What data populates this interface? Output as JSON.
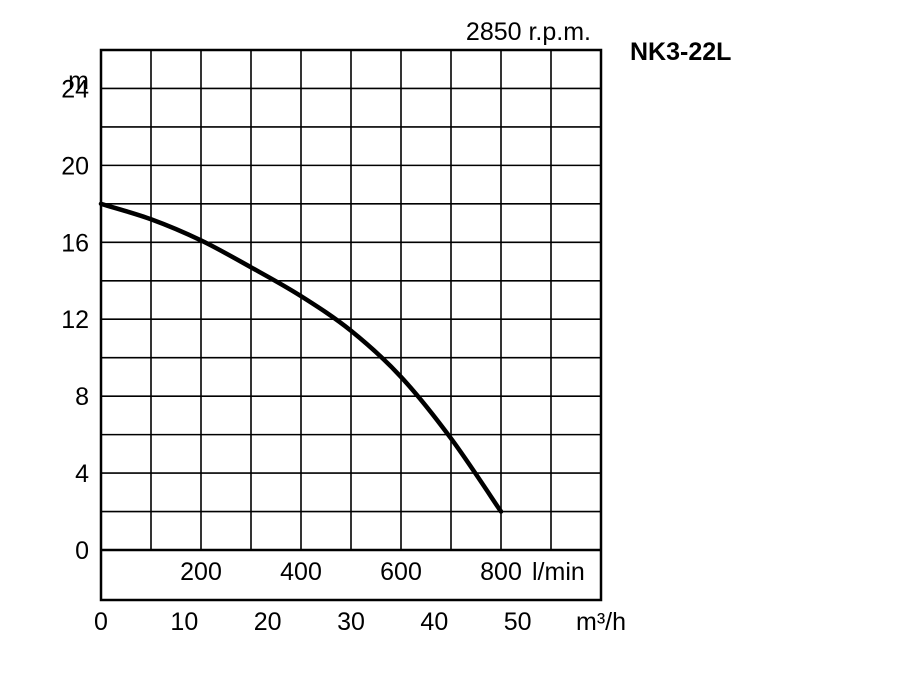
{
  "chart_data": {
    "type": "line",
    "title": "NK3-22L",
    "subtitle": "2850 r.p.m.",
    "ylabel": "m",
    "xlabel_lmin": "l/min",
    "xlabel_m3h": "m³/h",
    "ylim": [
      0,
      26
    ],
    "xlim_lmin": [
      0,
      1000
    ],
    "xlim_m3h": [
      0,
      60
    ],
    "yticks": [
      0,
      4,
      8,
      12,
      16,
      20,
      24
    ],
    "xticks_lmin": [
      200,
      400,
      600,
      800
    ],
    "xticks_m3h": [
      0,
      10,
      20,
      30,
      40,
      50
    ],
    "grid": true,
    "series": [
      {
        "x": [
          0,
          100,
          200,
          300,
          400,
          500,
          600,
          700,
          800
        ],
        "y": [
          18,
          17.2,
          16.1,
          14.7,
          13.2,
          11.4,
          9.0,
          5.8,
          2.0
        ]
      }
    ]
  }
}
